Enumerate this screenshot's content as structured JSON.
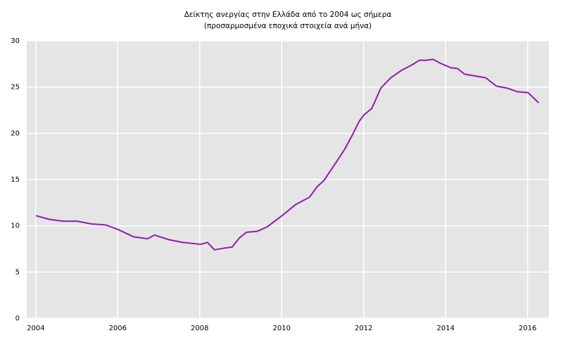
{
  "chart_data": {
    "type": "line",
    "title": "Δείκτης ανεργίας στην Ελλάδα από το 2004 ως σήμερα",
    "subtitle": "(προσαρμοσμένα εποχικά στοιχεία ανά μήνα)",
    "x": [
      2004.0,
      2004.33,
      2004.67,
      2005.01,
      2005.36,
      2005.7,
      2006.01,
      2006.39,
      2006.73,
      2006.9,
      2007.25,
      2007.59,
      2008.02,
      2008.19,
      2008.36,
      2008.62,
      2008.79,
      2008.97,
      2009.14,
      2009.4,
      2009.65,
      2010.01,
      2010.34,
      2010.68,
      2010.86,
      2011.03,
      2011.29,
      2011.54,
      2011.71,
      2011.89,
      2012.01,
      2012.2,
      2012.42,
      2012.66,
      2012.92,
      2013.18,
      2013.36,
      2013.52,
      2013.69,
      2013.86,
      2014.12,
      2014.29,
      2014.46,
      2014.72,
      2014.98,
      2015.24,
      2015.49,
      2015.75,
      2016.01,
      2016.27
    ],
    "series": [
      {
        "color": "#8b1fb3",
        "values": [
          11.1,
          10.7,
          10.5,
          10.5,
          10.2,
          10.1,
          9.6,
          8.8,
          8.6,
          9.0,
          8.5,
          8.2,
          8.0,
          8.2,
          7.4,
          7.6,
          7.7,
          8.7,
          9.3,
          9.4,
          9.9,
          11.1,
          12.3,
          13.1,
          14.2,
          14.9,
          16.6,
          18.3,
          19.7,
          21.3,
          22.0,
          22.7,
          24.9,
          26.0,
          26.8,
          27.4,
          27.9,
          27.9,
          28.0,
          27.6,
          27.1,
          27.0,
          26.4,
          26.2,
          26.0,
          25.1,
          24.9,
          24.5,
          24.4,
          23.3
        ]
      }
    ],
    "xlim": [
      2003.78,
      2016.52
    ],
    "xticks": [
      2004,
      2006,
      2008,
      2010,
      2012,
      2014,
      2016
    ],
    "ylim": [
      0,
      30
    ],
    "yticks": [
      0,
      5,
      10,
      15,
      20,
      25,
      30
    ],
    "grid": true
  }
}
